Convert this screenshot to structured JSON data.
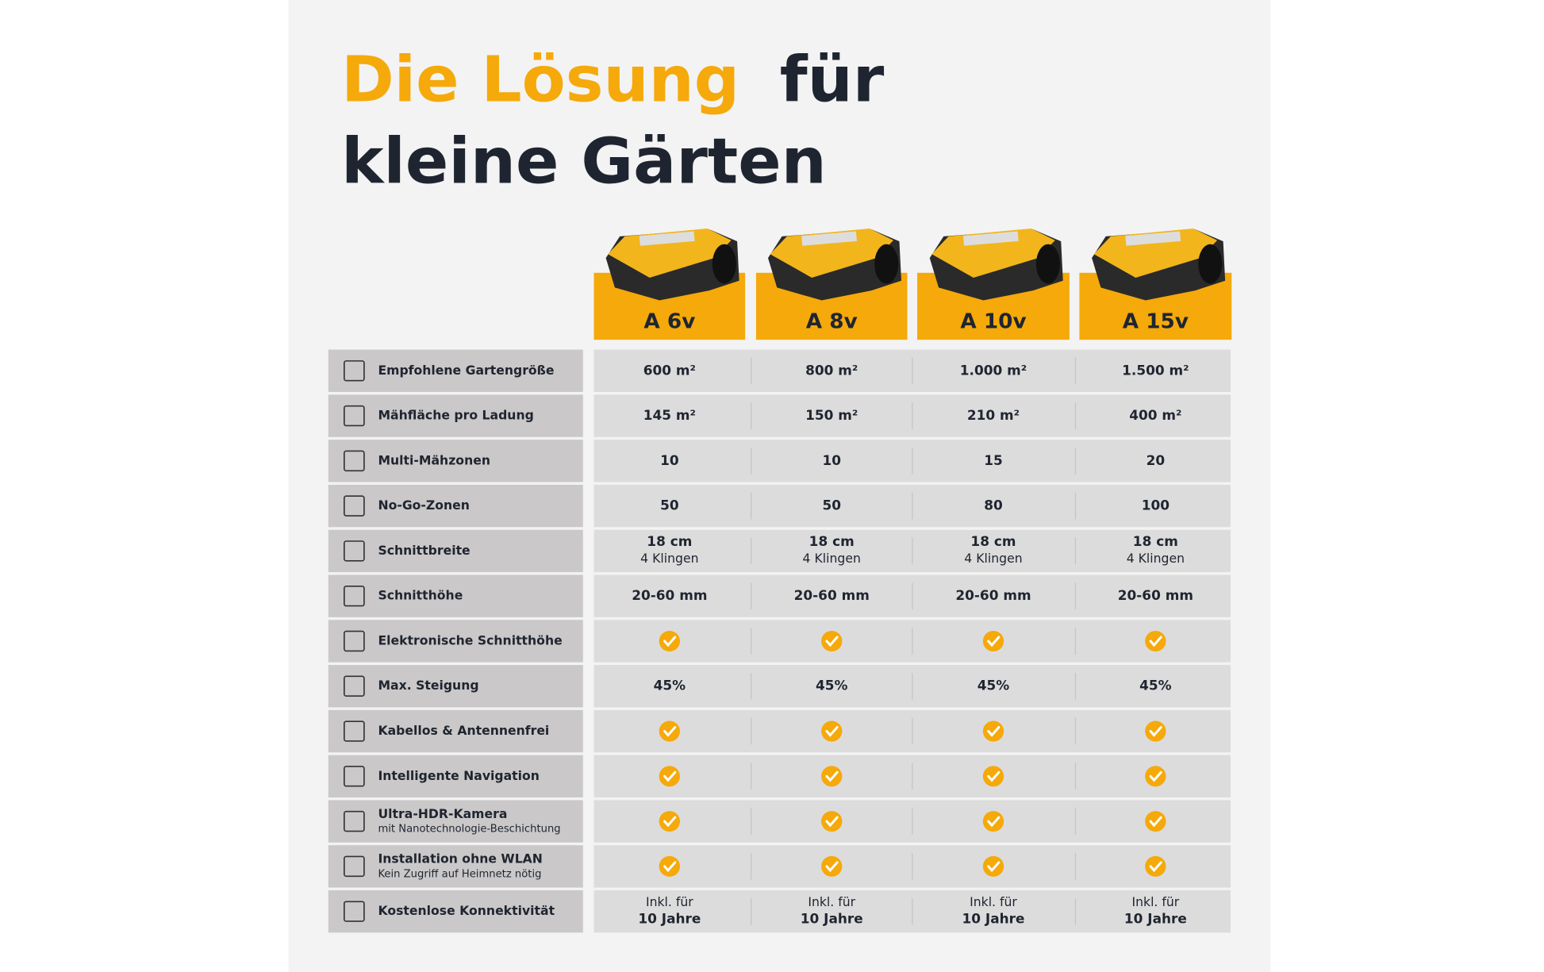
{
  "header": {
    "title_highlight": "Die Lösung",
    "title_rest": "für",
    "title_line2": "kleine Gärten"
  },
  "models": [
    "A 6v",
    "A 8v",
    "A 10v",
    "A 15v"
  ],
  "table": {
    "rows": [
      {
        "label": "Empfohlene Gartengröße",
        "values": [
          "600 m²",
          "800 m²",
          "1.000 m²",
          "1.500 m²"
        ]
      },
      {
        "label": "Mähfläche pro Ladung",
        "values": [
          "145 m²",
          "150 m²",
          "210 m²",
          "400 m²"
        ]
      },
      {
        "label": "Multi-Mähzonen",
        "values": [
          "10",
          "10",
          "15",
          "20"
        ]
      },
      {
        "label": "No-Go-Zonen",
        "values": [
          "50",
          "50",
          "80",
          "100"
        ]
      },
      {
        "label": "Schnittbreite",
        "bold_line": 0,
        "values": [
          [
            "18 cm",
            "4 Klingen"
          ],
          [
            "18 cm",
            "4 Klingen"
          ],
          [
            "18 cm",
            "4 Klingen"
          ],
          [
            "18 cm",
            "4 Klingen"
          ]
        ]
      },
      {
        "label": "Schnitthöhe",
        "values": [
          "20-60 mm",
          "20-60 mm",
          "20-60 mm",
          "20-60 mm"
        ]
      },
      {
        "label": "Elektronische Schnitthöhe",
        "values": [
          true,
          true,
          true,
          true
        ]
      },
      {
        "label": "Max. Steigung",
        "values": [
          "45%",
          "45%",
          "45%",
          "45%"
        ]
      },
      {
        "label": "Kabellos & Antennenfrei",
        "values": [
          true,
          true,
          true,
          true
        ]
      },
      {
        "label": "Intelligente Navigation",
        "values": [
          true,
          true,
          true,
          true
        ]
      },
      {
        "label": "Ultra-HDR-Kamera",
        "sublabel": "mit Nanotechnologie-Beschichtung",
        "values": [
          true,
          true,
          true,
          true
        ]
      },
      {
        "label": "Installation ohne WLAN",
        "sublabel": "Kein Zugriff auf Heimnetz nötig",
        "values": [
          true,
          true,
          true,
          true
        ]
      },
      {
        "label": "Kostenlose Konnektivität",
        "bold_line": 1,
        "values": [
          [
            "Inkl. für",
            "10 Jahre"
          ],
          [
            "Inkl. für",
            "10 Jahre"
          ],
          [
            "Inkl. für",
            "10 Jahre"
          ],
          [
            "Inkl. für",
            "10 Jahre"
          ]
        ]
      }
    ]
  }
}
